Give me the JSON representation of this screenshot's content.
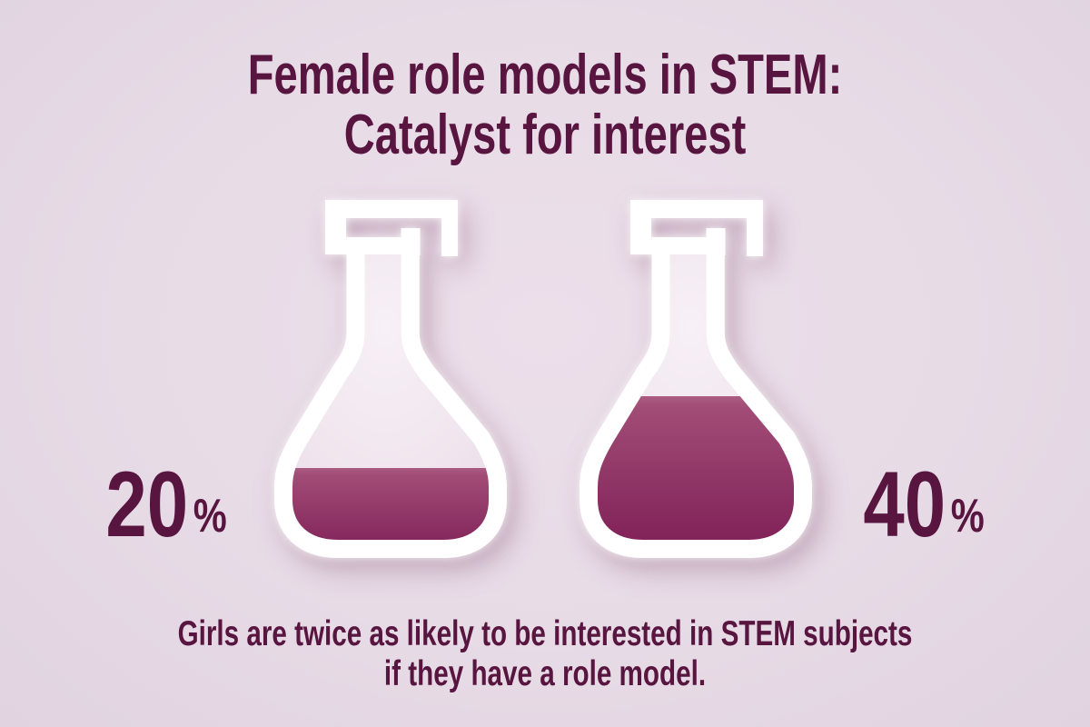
{
  "title": {
    "line1": "Female role models in STEM:",
    "line2": "Catalyst for interest"
  },
  "flasks": [
    {
      "id": "left",
      "value": "20",
      "unit": "%",
      "fill_percent": 20
    },
    {
      "id": "right",
      "value": "40",
      "unit": "%",
      "fill_percent": 40
    }
  ],
  "caption": {
    "line1": "Girls are twice as likely to be interested in STEM subjects",
    "line2": "if they have a role model."
  },
  "colors": {
    "background": "#e7dbe6",
    "text": "#571540",
    "flask_outline": "#ffffff",
    "liquid_top": "#a8547c",
    "liquid_bottom": "#7c1b54",
    "flask_interior": "#f2eaf1"
  },
  "chart_data": {
    "type": "bar",
    "variant": "pictogram-erlenmeyer-flasks",
    "categories": [
      "flask 1",
      "flask 2"
    ],
    "values": [
      20,
      40
    ],
    "unit": "%",
    "ylim": [
      0,
      100
    ],
    "title": "Female role models in STEM: Catalyst for interest",
    "annotation": "Girls are twice as likely to be interested in STEM subjects if they have a role model.",
    "legend": "none",
    "grid": false
  }
}
